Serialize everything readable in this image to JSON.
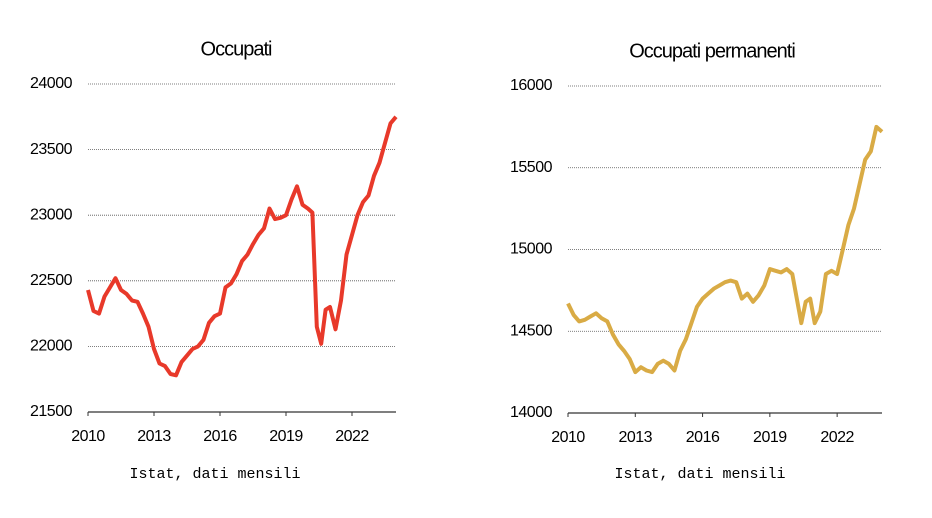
{
  "chart_data": [
    {
      "type": "line",
      "title": "Occupati",
      "note": "Istat, dati mensili",
      "color": "#e8392a",
      "x": [
        2010.0,
        2010.25,
        2010.5,
        2010.75,
        2011.0,
        2011.25,
        2011.5,
        2011.75,
        2012.0,
        2012.25,
        2012.5,
        2012.75,
        2013.0,
        2013.25,
        2013.5,
        2013.75,
        2014.0,
        2014.25,
        2014.5,
        2014.75,
        2015.0,
        2015.25,
        2015.5,
        2015.75,
        2016.0,
        2016.25,
        2016.5,
        2016.75,
        2017.0,
        2017.25,
        2017.5,
        2017.75,
        2018.0,
        2018.25,
        2018.5,
        2018.75,
        2019.0,
        2019.25,
        2019.5,
        2019.75,
        2020.0,
        2020.2,
        2020.4,
        2020.6,
        2020.8,
        2021.0,
        2021.25,
        2021.5,
        2021.75,
        2022.0,
        2022.25,
        2022.5,
        2022.75,
        2023.0,
        2023.25,
        2023.5,
        2023.75,
        2024.0
      ],
      "values": [
        22430,
        22270,
        22250,
        22380,
        22450,
        22520,
        22430,
        22400,
        22350,
        22340,
        22250,
        22150,
        21980,
        21870,
        21850,
        21790,
        21780,
        21880,
        21930,
        21980,
        22000,
        22050,
        22180,
        22230,
        22250,
        22450,
        22480,
        22550,
        22650,
        22700,
        22780,
        22850,
        22900,
        23050,
        22970,
        22980,
        23000,
        23120,
        23220,
        23080,
        23050,
        23020,
        22150,
        22020,
        22280,
        22300,
        22130,
        22350,
        22700,
        22850,
        23000,
        23100,
        23150,
        23300,
        23400,
        23550,
        23700,
        23750
      ],
      "xlim": [
        2010,
        2024
      ],
      "xticks": [
        2010,
        2013,
        2016,
        2019,
        2022
      ],
      "ylim": [
        21500,
        24000
      ],
      "yticks": [
        21500,
        22000,
        22500,
        23000,
        23500,
        24000
      ],
      "grid": true
    },
    {
      "type": "line",
      "title": "Occupati permanenti",
      "note": "Istat, dati mensili",
      "color": "#d9ab45",
      "x": [
        2010.0,
        2010.25,
        2010.5,
        2010.75,
        2011.0,
        2011.25,
        2011.5,
        2011.75,
        2012.0,
        2012.25,
        2012.5,
        2012.75,
        2013.0,
        2013.25,
        2013.5,
        2013.75,
        2014.0,
        2014.25,
        2014.5,
        2014.75,
        2015.0,
        2015.25,
        2015.5,
        2015.75,
        2016.0,
        2016.25,
        2016.5,
        2016.75,
        2017.0,
        2017.25,
        2017.5,
        2017.75,
        2018.0,
        2018.25,
        2018.5,
        2018.75,
        2019.0,
        2019.25,
        2019.5,
        2019.75,
        2020.0,
        2020.2,
        2020.4,
        2020.6,
        2020.8,
        2021.0,
        2021.25,
        2021.5,
        2021.75,
        2022.0,
        2022.25,
        2022.5,
        2022.75,
        2023.0,
        2023.25,
        2023.5,
        2023.75,
        2024.0
      ],
      "values": [
        14670,
        14600,
        14560,
        14570,
        14590,
        14610,
        14580,
        14560,
        14480,
        14420,
        14380,
        14330,
        14250,
        14280,
        14260,
        14250,
        14300,
        14320,
        14300,
        14260,
        14380,
        14450,
        14550,
        14650,
        14700,
        14730,
        14760,
        14780,
        14800,
        14810,
        14800,
        14700,
        14730,
        14680,
        14720,
        14780,
        14880,
        14870,
        14860,
        14880,
        14850,
        14700,
        14550,
        14680,
        14700,
        14550,
        14620,
        14850,
        14870,
        14850,
        15000,
        15150,
        15250,
        15400,
        15550,
        15600,
        15750,
        15720
      ],
      "xlim": [
        2010,
        2024
      ],
      "xticks": [
        2010,
        2013,
        2016,
        2019,
        2022
      ],
      "ylim": [
        14000,
        16000
      ],
      "yticks": [
        14000,
        14500,
        15000,
        15500,
        16000
      ],
      "grid": true
    }
  ]
}
